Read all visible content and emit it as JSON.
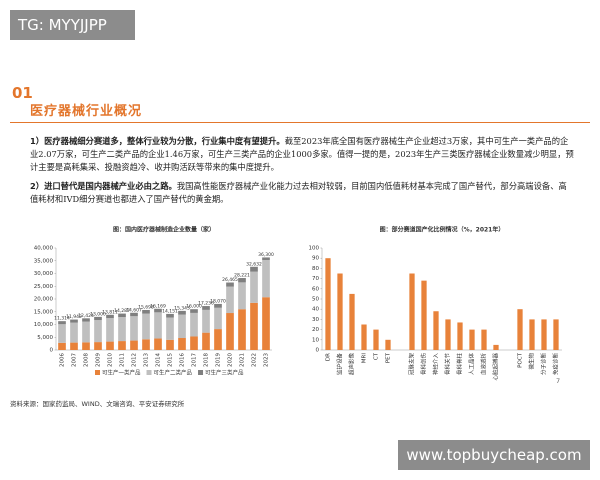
{
  "watermark": "TG: MYYJJPP",
  "section_number": "01",
  "section_title": "医疗器械行业概况",
  "paragraphs": [
    {
      "lead": "1）医疗器械细分赛道多，整体行业较为分散，行业集中度有望提升。",
      "text": "截至2023年底全国有医疗器械生产企业超过3万家，其中可生产一类产品的企业2.07万家，可生产二类产品的企业1.46万家，可生产三类产品的企业1000多家。值得一提的是，2023年生产三类医疗器械企业数量减少明显，预计主要是高耗集采、投融资趋冷、收并购活跃等带来的集中度提升。"
    },
    {
      "lead": "2）进口替代是国内器械产业必由之路。",
      "text": "我国高性能医疗器械产业化能力过去相对较弱，目前国内低值耗材基本完成了国产替代，部分高端设备、高值耗材和IVD细分赛道也都进入了国产替代的黄金期。"
    }
  ],
  "chart_data": [
    {
      "type": "stacked_bar",
      "title": "图：国内医疗器械制造企业数量（家）",
      "categories": [
        "2006",
        "2007",
        "2008",
        "2009",
        "2010",
        "2011",
        "2012",
        "2013",
        "2014",
        "2015",
        "2016",
        "2017",
        "2018",
        "2019",
        "2020",
        "2021",
        "2022",
        "2023"
      ],
      "series": [
        {
          "name": "可生产一类产品",
          "color": "#e8823a",
          "values": [
            2800,
            2900,
            3000,
            3100,
            3300,
            3500,
            3700,
            4200,
            4500,
            4000,
            4700,
            5300,
            6800,
            8200,
            14500,
            16000,
            18500,
            20700
          ]
        },
        {
          "name": "可生产二类产品",
          "color": "#bfbfbf",
          "values": [
            7314,
            7842,
            8174,
            8650,
            9211,
            9437,
            9557,
            10098,
            10269,
            8751,
            9193,
            9250,
            8936,
            8370,
            10365,
            10521,
            12232,
            14600
          ]
        },
        {
          "name": "可生产三类产品",
          "color": "#7f7f7f",
          "values": [
            1200,
            1200,
            1250,
            1250,
            1300,
            1350,
            1350,
            1400,
            1400,
            1400,
            1450,
            1450,
            1500,
            1500,
            1600,
            1700,
            1900,
            1000
          ]
        }
      ],
      "totals": {
        "values": [
          11314,
          11942,
          12424,
          13000,
          13811,
          14287,
          14607,
          15698,
          16169,
          14151,
          15343,
          16000,
          17236,
          18070,
          26465,
          28221,
          32632,
          36300
        ],
        "value_labels": [
          "11,314",
          "11,942",
          "12,424",
          "13,000",
          "13,811",
          "14,287",
          "14,607",
          "15,698",
          "16,169",
          "14,151",
          "15,343",
          "16,000",
          "17,236",
          "18,070",
          "26,465",
          "28,221",
          "32,632",
          "36,300"
        ]
      },
      "ylim": [
        0,
        40000
      ],
      "yticks": [
        0,
        {
          "value": 5000,
          "label": "5,000"
        },
        {
          "value": 10000,
          "label": "10,000"
        },
        {
          "value": 15000,
          "label": "15,000"
        },
        {
          "value": 20000,
          "label": "20,000"
        },
        {
          "value": 25000,
          "label": "25,000"
        },
        {
          "value": 30000,
          "label": "30,000"
        },
        {
          "value": 35000,
          "label": "35,000"
        },
        {
          "value": 40000,
          "label": "40,000"
        }
      ],
      "legend": "bottom"
    },
    {
      "type": "bar",
      "title": "图：部分赛道国产化比例情况（%，2021年）",
      "color": "#e8823a",
      "categories": [
        "DR",
        "监护设备",
        "超声影像",
        "MRI",
        "CT",
        "PET",
        null,
        "冠脉支架",
        "骨科创伤",
        "神经介入",
        "骨科关节",
        "骨科脊柱",
        "人工晶体",
        "血液透析",
        "心脏起搏器",
        null,
        "POCT",
        "微生物",
        "分子诊断",
        "免疫诊断"
      ],
      "values": [
        90,
        75,
        55,
        25,
        20,
        10,
        null,
        75,
        68,
        38,
        30,
        27,
        20,
        20,
        5,
        null,
        40,
        30,
        30,
        30
      ],
      "ylim": [
        0,
        100
      ],
      "yticks": [
        0,
        10,
        20,
        30,
        40,
        50,
        60,
        70,
        80,
        90,
        100
      ]
    }
  ],
  "source": "资料来源：国家药监局、WIND、文瑞咨询、平安证券研究所",
  "page_number": "7",
  "footer_watermark": "www.topbuycheap.com"
}
